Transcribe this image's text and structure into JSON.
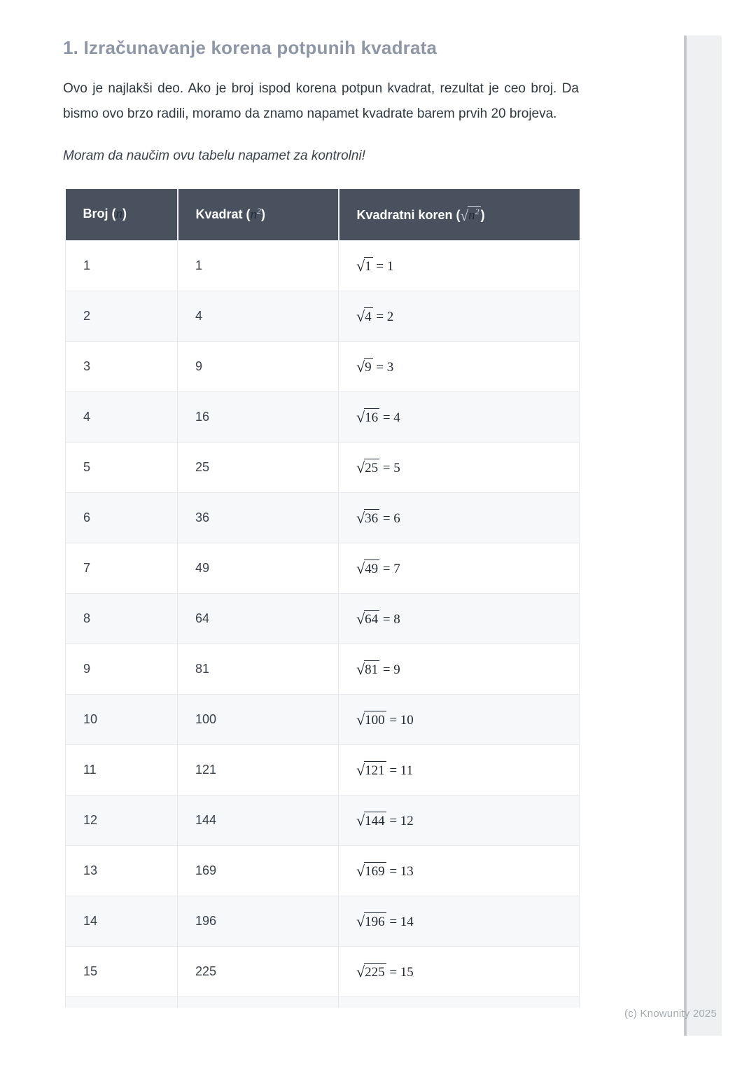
{
  "document": {
    "title": "1. Izračunavanje korena potpunih kvadrata",
    "paragraph": "Ovo je najlakši deo. Ako je broj ispod korena potpun kvadrat, rezultat je ceo broj. Da bismo ovo brzo radili, moramo da znamo napamet kvadrate barem prvih 20 brojeva.",
    "note": "Moram da naučim ovu tabelu napamet za kontrolni!",
    "watermark": "(c) Knowunity 2025"
  },
  "table": {
    "radical_symbol": "√",
    "equals_sign": "=",
    "columns": [
      {
        "key": "broj",
        "label_prefix": "Broj (",
        "math_var": "n",
        "math_sup": null,
        "has_radical": false,
        "label_suffix": ")"
      },
      {
        "key": "kvadrat",
        "label_prefix": "Kvadrat (",
        "math_var": "n",
        "math_sup": "2",
        "has_radical": false,
        "label_suffix": ")"
      },
      {
        "key": "koren",
        "label_prefix": "Kvadratni koren (",
        "math_var": "n",
        "math_sup": "2",
        "has_radical": true,
        "label_suffix": ")"
      }
    ],
    "rows": [
      {
        "n": "1",
        "square": "1",
        "root": {
          "radicand": "1",
          "result": "1"
        }
      },
      {
        "n": "2",
        "square": "4",
        "root": {
          "radicand": "4",
          "result": "2"
        }
      },
      {
        "n": "3",
        "square": "9",
        "root": {
          "radicand": "9",
          "result": "3"
        }
      },
      {
        "n": "4",
        "square": "16",
        "root": {
          "radicand": "16",
          "result": "4"
        }
      },
      {
        "n": "5",
        "square": "25",
        "root": {
          "radicand": "25",
          "result": "5"
        }
      },
      {
        "n": "6",
        "square": "36",
        "root": {
          "radicand": "36",
          "result": "6"
        }
      },
      {
        "n": "7",
        "square": "49",
        "root": {
          "radicand": "49",
          "result": "7"
        }
      },
      {
        "n": "8",
        "square": "64",
        "root": {
          "radicand": "64",
          "result": "8"
        }
      },
      {
        "n": "9",
        "square": "81",
        "root": {
          "radicand": "81",
          "result": "9"
        }
      },
      {
        "n": "10",
        "square": "100",
        "root": {
          "radicand": "100",
          "result": "10"
        }
      },
      {
        "n": "11",
        "square": "121",
        "root": {
          "radicand": "121",
          "result": "11"
        }
      },
      {
        "n": "12",
        "square": "144",
        "root": {
          "radicand": "144",
          "result": "12"
        }
      },
      {
        "n": "13",
        "square": "169",
        "root": {
          "radicand": "169",
          "result": "13"
        }
      },
      {
        "n": "14",
        "square": "196",
        "root": {
          "radicand": "196",
          "result": "14"
        }
      },
      {
        "n": "15",
        "square": "225",
        "root": {
          "radicand": "225",
          "result": "15"
        }
      }
    ]
  },
  "colors": {
    "header_bg": "#48515d",
    "row_stripe": "#f7f8fa",
    "table_border": "#e6e9ed",
    "title_text": "#8e97a7",
    "body_text": "#2f3740",
    "watermark_text": "#a6abb2",
    "scrollbar_fill": "#eff0f2",
    "scrollbar_edge": "#c6c9cd"
  }
}
